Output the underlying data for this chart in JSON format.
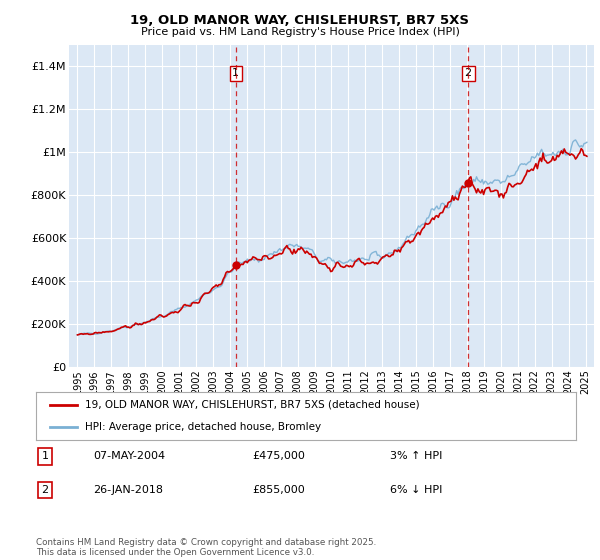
{
  "title": "19, OLD MANOR WAY, CHISLEHURST, BR7 5XS",
  "subtitle": "Price paid vs. HM Land Registry's House Price Index (HPI)",
  "ylabel_ticks": [
    "£0",
    "£200K",
    "£400K",
    "£600K",
    "£800K",
    "£1M",
    "£1.2M",
    "£1.4M"
  ],
  "ylim": [
    0,
    1500000
  ],
  "xlim_start": 1994.5,
  "xlim_end": 2025.5,
  "sale1_x": 2004.35,
  "sale1_y": 475000,
  "sale2_x": 2018.07,
  "sale2_y": 855000,
  "legend_line1": "19, OLD MANOR WAY, CHISLEHURST, BR7 5XS (detached house)",
  "legend_line2": "HPI: Average price, detached house, Bromley",
  "table_row1_num": "1",
  "table_row1_date": "07-MAY-2004",
  "table_row1_price": "£475,000",
  "table_row1_hpi": "3% ↑ HPI",
  "table_row2_num": "2",
  "table_row2_date": "26-JAN-2018",
  "table_row2_price": "£855,000",
  "table_row2_hpi": "6% ↓ HPI",
  "footer": "Contains HM Land Registry data © Crown copyright and database right 2025.\nThis data is licensed under the Open Government Licence v3.0.",
  "line_color_red": "#cc0000",
  "line_color_blue": "#7ab0d4",
  "bg_color": "#dce8f5",
  "grid_color": "#ffffff",
  "dashed_color": "#cc0000",
  "fig_bg": "#ffffff"
}
